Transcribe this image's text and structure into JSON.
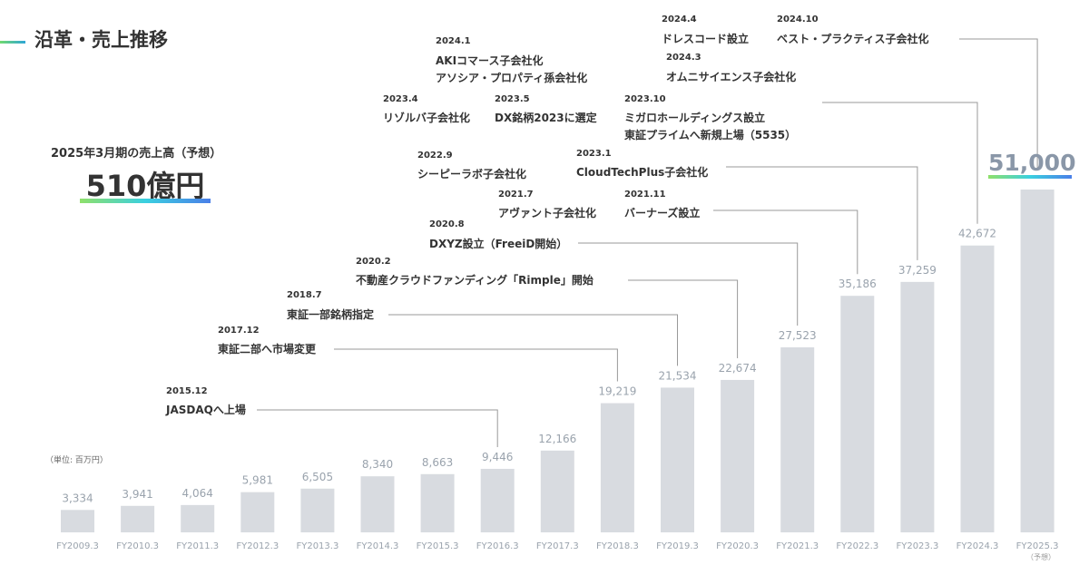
{
  "title": "沿革・売上推移",
  "forecast": {
    "caption": "2025年3月期の売上高（予想）",
    "value": "510億円"
  },
  "unit_label": "（単位: 百万円）",
  "final_value_label": "51,000",
  "forecast_note": "（予想）",
  "colors": {
    "bar": "#d8dbe0",
    "value_label": "#9aa3ad",
    "axis_label": "#9aa3ad",
    "leader": "#999999"
  },
  "chart_data": {
    "type": "bar",
    "categories": [
      "FY2009.3",
      "FY2010.3",
      "FY2011.3",
      "FY2012.3",
      "FY2013.3",
      "FY2014.3",
      "FY2015.3",
      "FY2016.3",
      "FY2017.3",
      "FY2018.3",
      "FY2019.3",
      "FY2020.3",
      "FY2021.3",
      "FY2022.3",
      "FY2023.3",
      "FY2024.3",
      "FY2025.3"
    ],
    "values": [
      3334,
      3941,
      4064,
      5981,
      6505,
      8340,
      8663,
      9446,
      12166,
      19219,
      21534,
      22674,
      27523,
      35186,
      37259,
      42672,
      51000
    ],
    "value_labels": [
      "3,334",
      "3,941",
      "4,064",
      "5,981",
      "6,505",
      "8,340",
      "8,663",
      "9,446",
      "12,166",
      "19,219",
      "21,534",
      "22,674",
      "27,523",
      "35,186",
      "37,259",
      "42,672",
      ""
    ],
    "ylim": [
      0,
      51000
    ]
  },
  "annotations": [
    {
      "date": "2015.12",
      "lines": [
        "JASDAQへ上場"
      ]
    },
    {
      "date": "2017.12",
      "lines": [
        "東証二部へ市場変更"
      ]
    },
    {
      "date": "2018.7",
      "lines": [
        "東証一部銘柄指定"
      ]
    },
    {
      "date": "2020.2",
      "lines": [
        "不動産クラウドファンディング「Rimple」開始"
      ]
    },
    {
      "date": "2020.8",
      "lines": [
        "DXYZ設立（FreeiD開始）"
      ]
    },
    {
      "date": "2021.7",
      "lines": [
        "アヴァント子会社化"
      ]
    },
    {
      "date": "2021.11",
      "lines": [
        "バーナーズ設立"
      ]
    },
    {
      "date": "2022.9",
      "lines": [
        "シーピーラボ子会社化"
      ]
    },
    {
      "date": "2023.1",
      "lines": [
        "CloudTechPlus子会社化"
      ]
    },
    {
      "date": "2023.4",
      "lines": [
        "リゾルバ子会社化"
      ]
    },
    {
      "date": "2023.5",
      "lines": [
        "DX銘柄2023に選定"
      ]
    },
    {
      "date": "2023.10",
      "lines": [
        "ミガロホールディングス設立",
        "東証プライムへ新規上場（5535）"
      ]
    },
    {
      "date": "2024.1",
      "lines": [
        "AKIコマース子会社化",
        "アソシア・プロパティ孫会社化"
      ]
    },
    {
      "date": "2024.3",
      "lines": [
        "オムニサイエンス子会社化"
      ]
    },
    {
      "date": "2024.4",
      "lines": [
        "ドレスコード設立"
      ]
    },
    {
      "date": "2024.10",
      "lines": [
        "ベスト・プラクティス子会社化"
      ]
    }
  ]
}
